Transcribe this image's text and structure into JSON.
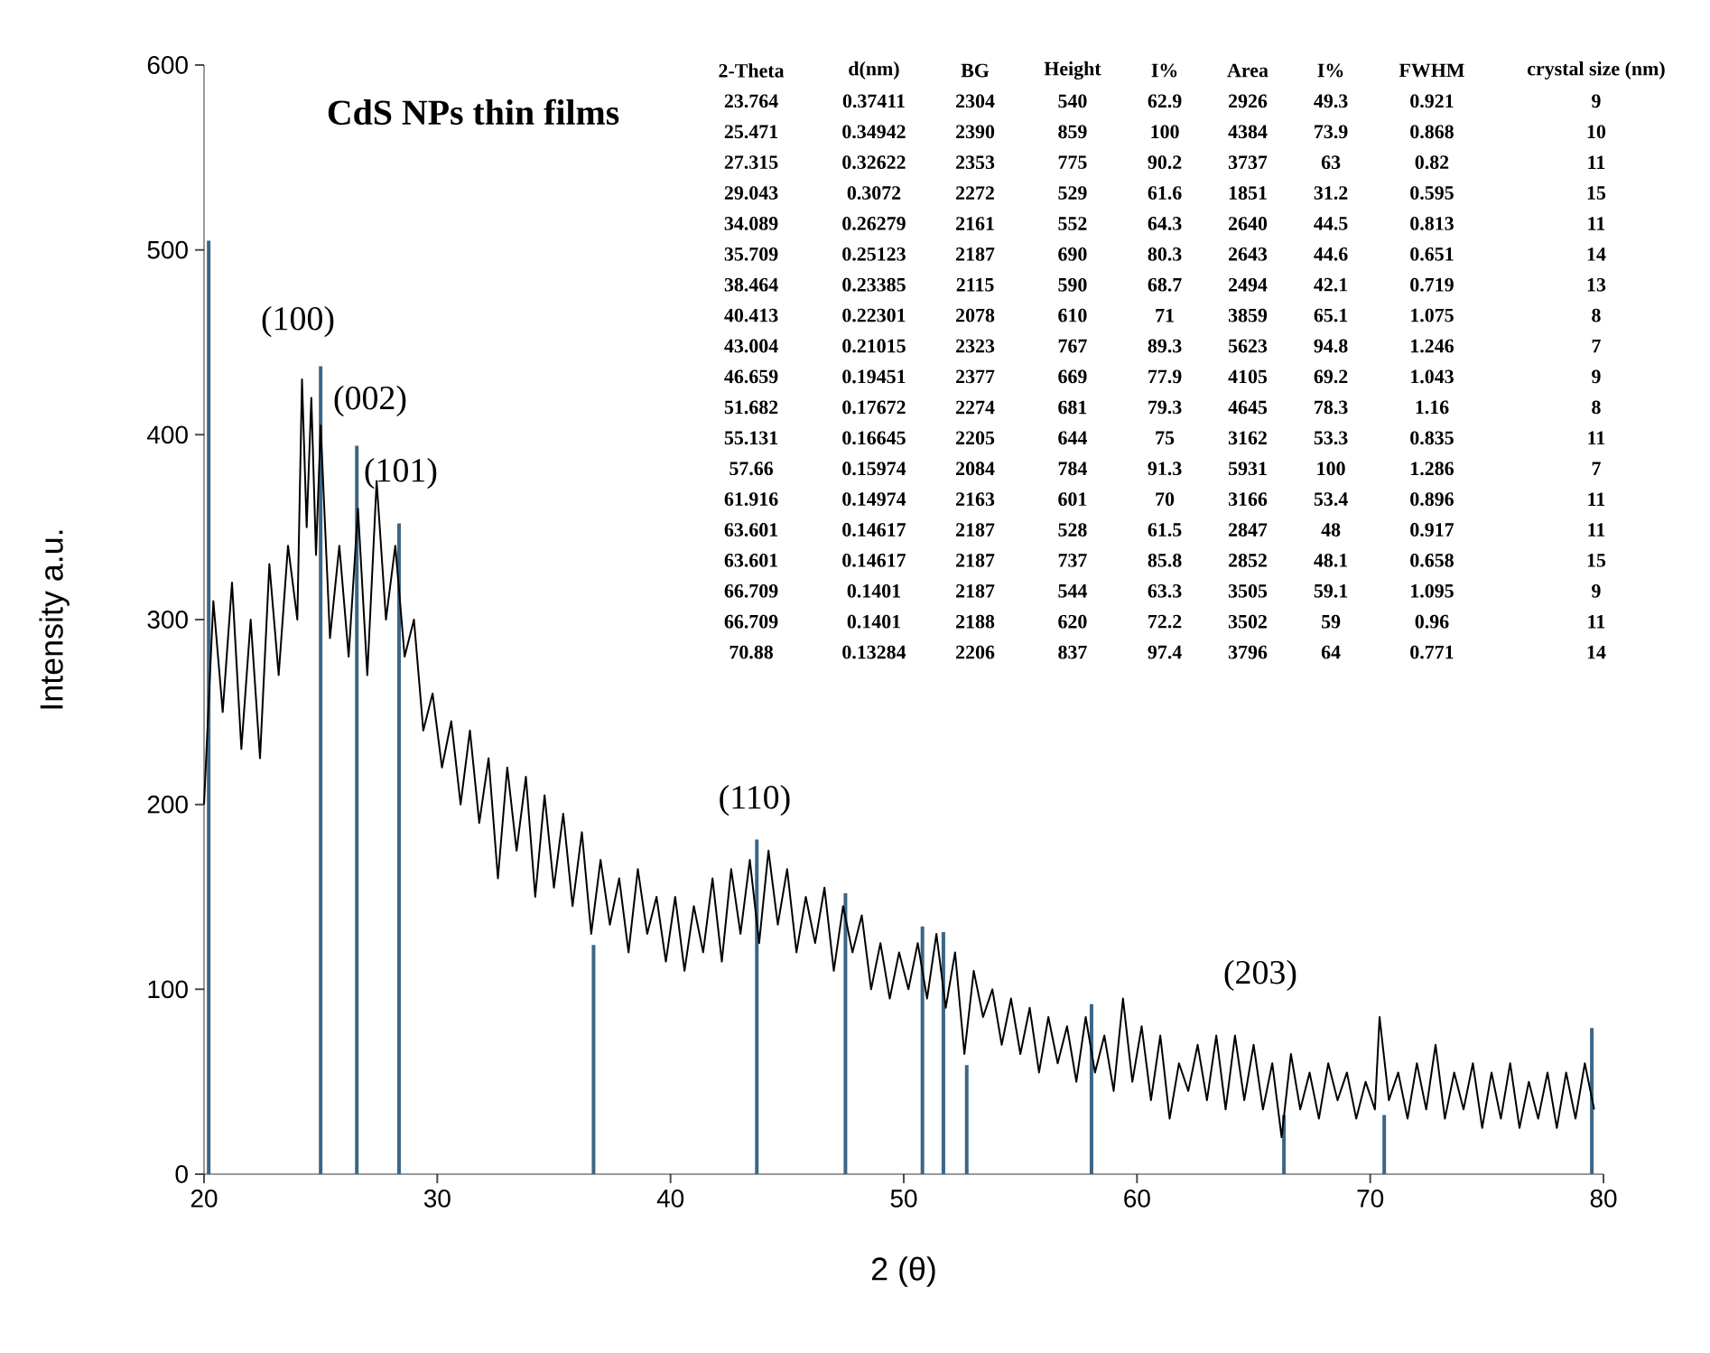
{
  "chart_data": {
    "type": "line",
    "title": "CdS NPs  thin films",
    "xlabel": "2 (θ)",
    "ylabel": "Intensity  a.u.",
    "xlim": [
      20,
      80
    ],
    "ylim": [
      0,
      600
    ],
    "xticks": [
      20,
      30,
      40,
      50,
      60,
      70,
      80
    ],
    "yticks": [
      0,
      100,
      200,
      300,
      400,
      500,
      600
    ],
    "series": [
      {
        "color": "#000000",
        "x": [
          20.0,
          20.4,
          20.8,
          21.2,
          21.6,
          22.0,
          22.4,
          22.8,
          23.2,
          23.6,
          24.0,
          24.2,
          24.4,
          24.6,
          24.8,
          25.0,
          25.4,
          25.8,
          26.2,
          26.6,
          27.0,
          27.4,
          27.8,
          28.2,
          28.6,
          29.0,
          29.4,
          29.8,
          30.2,
          30.6,
          31.0,
          31.4,
          31.8,
          32.2,
          32.6,
          33.0,
          33.4,
          33.8,
          34.2,
          34.6,
          35.0,
          35.4,
          35.8,
          36.2,
          36.6,
          37.0,
          37.4,
          37.8,
          38.2,
          38.6,
          39.0,
          39.4,
          39.8,
          40.2,
          40.6,
          41.0,
          41.4,
          41.8,
          42.2,
          42.6,
          43.0,
          43.4,
          43.8,
          44.2,
          44.6,
          45.0,
          45.4,
          45.8,
          46.2,
          46.6,
          47.0,
          47.4,
          47.8,
          48.2,
          48.6,
          49.0,
          49.4,
          49.8,
          50.2,
          50.6,
          51.0,
          51.4,
          51.8,
          52.2,
          52.6,
          53.0,
          53.4,
          53.8,
          54.2,
          54.6,
          55.0,
          55.4,
          55.8,
          56.2,
          56.6,
          57.0,
          57.4,
          57.8,
          58.2,
          58.6,
          59.0,
          59.4,
          59.8,
          60.2,
          60.6,
          61.0,
          61.4,
          61.8,
          62.2,
          62.6,
          63.0,
          63.4,
          63.8,
          64.2,
          64.6,
          65.0,
          65.4,
          65.8,
          66.2,
          66.6,
          67.0,
          67.4,
          67.8,
          68.2,
          68.6,
          69.0,
          69.4,
          69.8,
          70.2,
          70.4,
          70.8,
          71.2,
          71.6,
          72.0,
          72.4,
          72.8,
          73.2,
          73.6,
          74.0,
          74.4,
          74.8,
          75.2,
          75.6,
          76.0,
          76.4,
          76.8,
          77.2,
          77.6,
          78.0,
          78.4,
          78.8,
          79.2,
          79.6
        ],
        "values": [
          200,
          310,
          250,
          320,
          230,
          300,
          225,
          330,
          270,
          340,
          300,
          430,
          350,
          420,
          335,
          405,
          290,
          340,
          280,
          360,
          270,
          375,
          300,
          340,
          280,
          300,
          240,
          260,
          220,
          245,
          200,
          240,
          190,
          225,
          160,
          220,
          175,
          215,
          150,
          205,
          155,
          195,
          145,
          185,
          130,
          170,
          135,
          160,
          120,
          165,
          130,
          150,
          115,
          150,
          110,
          145,
          120,
          160,
          115,
          165,
          130,
          170,
          125,
          175,
          135,
          165,
          120,
          150,
          125,
          155,
          110,
          145,
          120,
          140,
          100,
          125,
          95,
          120,
          100,
          125,
          95,
          130,
          90,
          120,
          65,
          110,
          85,
          100,
          70,
          95,
          65,
          90,
          55,
          85,
          60,
          80,
          50,
          85,
          55,
          75,
          45,
          95,
          50,
          80,
          40,
          75,
          30,
          60,
          45,
          70,
          40,
          75,
          35,
          75,
          40,
          70,
          35,
          60,
          20,
          65,
          35,
          55,
          30,
          60,
          40,
          55,
          30,
          50,
          35,
          85,
          40,
          55,
          30,
          60,
          35,
          70,
          30,
          55,
          35,
          60,
          25,
          55,
          30,
          60,
          25,
          50,
          30,
          55,
          25,
          55,
          30,
          60,
          35
        ]
      },
      {
        "type": "bar",
        "color": "#3d6685",
        "x": [
          20.2,
          25.0,
          26.55,
          28.36,
          36.7,
          43.7,
          47.5,
          50.8,
          51.7,
          52.7,
          58.05,
          66.3,
          70.6,
          79.5
        ],
        "values": [
          505,
          437,
          394,
          352,
          124,
          181,
          152,
          134,
          131,
          59,
          92,
          32,
          32,
          79
        ]
      }
    ],
    "annotations": [
      "(100)",
      "(002)",
      "(101)",
      "(110)",
      "(203)",
      "2-Theta",
      "d(nm)",
      "BG",
      "Height",
      "I%",
      "Area",
      "I%",
      "FWHM",
      "crystal size (nm)",
      "23.764",
      "0.37411",
      "2304",
      "540",
      "62.9",
      "2926",
      "49.3",
      "0.921",
      "9",
      "25.471",
      "0.34942",
      "2390",
      "859",
      "100",
      "4384",
      "73.9",
      "0.868",
      "10",
      "27.315",
      "0.32622",
      "2353",
      "775",
      "90.2",
      "3737",
      "63",
      "0.82",
      "11",
      "29.043",
      "0.3072",
      "2272",
      "529",
      "61.6",
      "1851",
      "31.2",
      "0.595",
      "15",
      "34.089",
      "0.26279",
      "2161",
      "552",
      "64.3",
      "2640",
      "44.5",
      "0.813",
      "11",
      "35.709",
      "0.25123",
      "2187",
      "690",
      "80.3",
      "2643",
      "44.6",
      "0.651",
      "14",
      "38.464",
      "0.23385",
      "2115",
      "590",
      "68.7",
      "2494",
      "42.1",
      "0.719",
      "13",
      "40.413",
      "0.22301",
      "2078",
      "610",
      "71",
      "3859",
      "65.1",
      "1.075",
      "8",
      "43.004",
      "0.21015",
      "2323",
      "767",
      "89.3",
      "5623",
      "94.8",
      "1.246",
      "7",
      "46.659",
      "0.19451",
      "2377",
      "669",
      "77.9",
      "4105",
      "69.2",
      "1.043",
      "9",
      "51.682",
      "0.17672",
      "2274",
      "681",
      "79.3",
      "4645",
      "78.3",
      "1.16",
      "8",
      "55.131",
      "0.16645",
      "2205",
      "644",
      "75",
      "3162",
      "53.3",
      "0.835",
      "11",
      "57.66",
      "0.15974",
      "2084",
      "784",
      "91.3",
      "5931",
      "100",
      "1.286",
      "7",
      "61.916",
      "0.14974",
      "2163",
      "601",
      "70",
      "3166",
      "53.4",
      "0.896",
      "11",
      "63.601",
      "0.14617",
      "2187",
      "528",
      "61.5",
      "2847",
      "48",
      "0.917",
      "11",
      "63.601",
      "0.14617",
      "2187",
      "737",
      "85.8",
      "2852",
      "48.1",
      "0.658",
      "15",
      "66.709",
      "0.1401",
      "2187",
      "544",
      "63.3",
      "3505",
      "59.1",
      "1.095",
      "9",
      "66.709",
      "0.1401",
      "2188",
      "620",
      "72.2",
      "3502",
      "59",
      "0.96",
      "11",
      "70.88",
      "0.13284",
      "2206",
      "837",
      "97.4",
      "3796",
      "64",
      "0.771",
      "14"
    ]
  }
}
